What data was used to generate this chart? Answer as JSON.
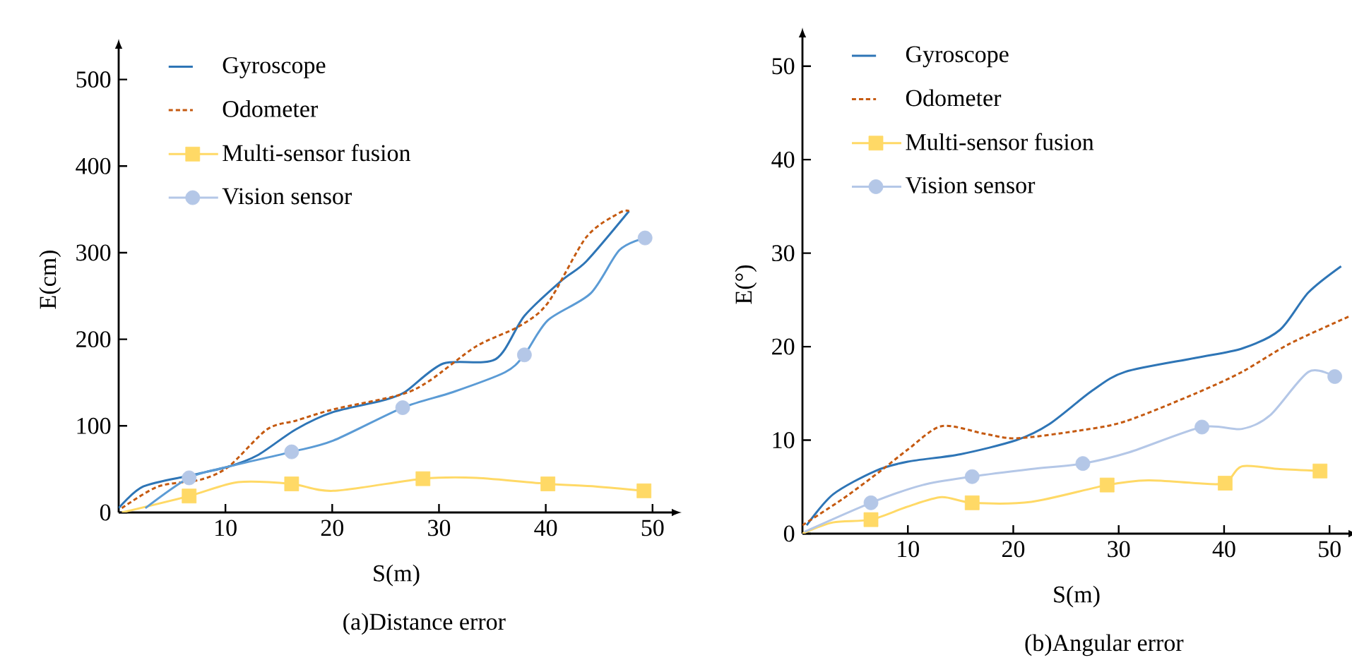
{
  "chart_data": [
    {
      "type": "line",
      "xlabel": "S(m)",
      "ylabel": "E(cm)",
      "xlim": [
        0,
        52
      ],
      "ylim": [
        0,
        538
      ],
      "xticks": [
        10,
        20,
        30,
        40,
        50
      ],
      "yticks": [
        0,
        100,
        200,
        300,
        400,
        500
      ],
      "legend": "top left",
      "annotations": [
        "(a)Distance error"
      ],
      "series": [
        {
          "name": "Gyroscope",
          "color": "#2e75b6",
          "line_style": "solid",
          "x": [
            0,
            2.3,
            6.8,
            10.3,
            13,
            16.6,
            20.1,
            24.6,
            26.8,
            30.4,
            35.3,
            38,
            41.5,
            43.8,
            47.8
          ],
          "values": [
            5,
            30,
            43,
            53,
            66,
            96,
            116,
            129,
            139,
            172,
            177,
            227,
            268,
            290,
            348
          ]
        },
        {
          "name": "Odometer",
          "color": "#c55a11",
          "line_style": "dashed",
          "x": [
            0.3,
            3.7,
            7.7,
            10.3,
            13.9,
            16.6,
            20.1,
            26.4,
            29.1,
            33.5,
            37.5,
            40.2,
            43.8,
            46.9,
            47.8
          ],
          "values": [
            5,
            30,
            38,
            53,
            96,
            106,
            119,
            136,
            152,
            192,
            215,
            242,
            318,
            346,
            348
          ]
        },
        {
          "color": "#ffd966",
          "line_style": "solid",
          "x": [
            0.3,
            6.6,
            11.2,
            16.2,
            20.1,
            28.5,
            33.5,
            40.2,
            44.7,
            49.2
          ],
          "values": [
            0,
            19,
            35,
            33,
            25,
            39,
            40,
            33,
            30,
            25
          ]
        },
        {
          "type": "scatter",
          "name": "Multi-sensor fusion",
          "color": "#ffd966",
          "marker": "square",
          "x": [
            6.6,
            16.2,
            28.5,
            40.2,
            49.2
          ],
          "values": [
            19,
            33,
            39,
            33,
            25
          ]
        },
        {
          "color": "#5b9bd5",
          "line_style": "solid",
          "x": [
            2.5,
            6.6,
            10.3,
            16.2,
            20.1,
            26.6,
            31.3,
            36.2,
            38,
            40.2,
            44.2,
            46.9,
            49.3
          ],
          "values": [
            5,
            40,
            53,
            70,
            83,
            121,
            139,
            162,
            182,
            222,
            253,
            303,
            317
          ]
        },
        {
          "type": "scatter",
          "name": "Vision sensor",
          "color": "#b4c7e7",
          "marker": "circle",
          "x": [
            6.6,
            16.2,
            26.6,
            38,
            49.3
          ],
          "values": [
            40,
            70,
            121,
            182,
            317
          ]
        }
      ]
    },
    {
      "type": "line",
      "xlabel": "S(m)",
      "ylabel": "E(°)",
      "xlim": [
        0,
        52
      ],
      "ylim": [
        0,
        53.3
      ],
      "xticks": [
        10,
        20,
        30,
        40,
        50
      ],
      "yticks": [
        0,
        10,
        20,
        30,
        40,
        50
      ],
      "legend": "top left",
      "annotations": [
        "(b)Angular error"
      ],
      "series": [
        {
          "name": "Gyroscope",
          "color": "#2e75b6",
          "line_style": "solid",
          "x": [
            0.4,
            2.9,
            6.9,
            10,
            15,
            20.3,
            23.4,
            27.5,
            30.6,
            37.3,
            41.7,
            45.3,
            48,
            51.1
          ],
          "values": [
            0.9,
            4.2,
            6.7,
            7.7,
            8.5,
            10,
            11.7,
            15.3,
            17.3,
            18.8,
            19.8,
            21.8,
            25.8,
            28.6
          ]
        },
        {
          "name": "Odometer",
          "color": "#c55a11",
          "line_style": "dashed",
          "x": [
            0,
            3.8,
            7.4,
            10,
            13.2,
            17.2,
            20.3,
            26.1,
            30.6,
            37.3,
            41.7,
            46.2,
            52
          ],
          "values": [
            0.9,
            3.7,
            6.7,
            9,
            11.5,
            10.7,
            10.2,
            11,
            12,
            15,
            17.3,
            20.3,
            23.3
          ]
        },
        {
          "color": "#ffd966",
          "line_style": "solid",
          "x": [
            0,
            2.9,
            6.5,
            10,
            13.2,
            16.1,
            21.7,
            28.9,
            32.8,
            37.3,
            40.1,
            41.7,
            45.3,
            49.1
          ],
          "values": [
            0,
            1.2,
            1.5,
            2.9,
            3.9,
            3.3,
            3.4,
            5.2,
            5.7,
            5.4,
            5.4,
            7.2,
            6.9,
            6.7
          ]
        },
        {
          "type": "scatter",
          "name": "Multi-sensor fusion",
          "color": "#ffd966",
          "marker": "square",
          "x": [
            6.5,
            16.1,
            28.9,
            40.1,
            49.1
          ],
          "values": [
            1.5,
            3.3,
            5.2,
            5.4,
            6.7
          ]
        },
        {
          "color": "#b4c7e7",
          "line_style": "solid",
          "x": [
            0.2,
            6.5,
            11.4,
            16.1,
            21.7,
            26.6,
            31,
            37.9,
            41.7,
            44.4,
            48,
            50.5
          ],
          "values": [
            0.2,
            3.3,
            5.2,
            6.1,
            6.9,
            7.5,
            8.7,
            11.4,
            11.2,
            12.7,
            17.3,
            16.8
          ]
        },
        {
          "type": "scatter",
          "name": "Vision sensor",
          "color": "#b4c7e7",
          "marker": "circle",
          "x": [
            6.5,
            16.1,
            26.6,
            37.9,
            50.5
          ],
          "values": [
            3.3,
            6.1,
            7.5,
            11.4,
            16.8
          ]
        }
      ]
    }
  ]
}
